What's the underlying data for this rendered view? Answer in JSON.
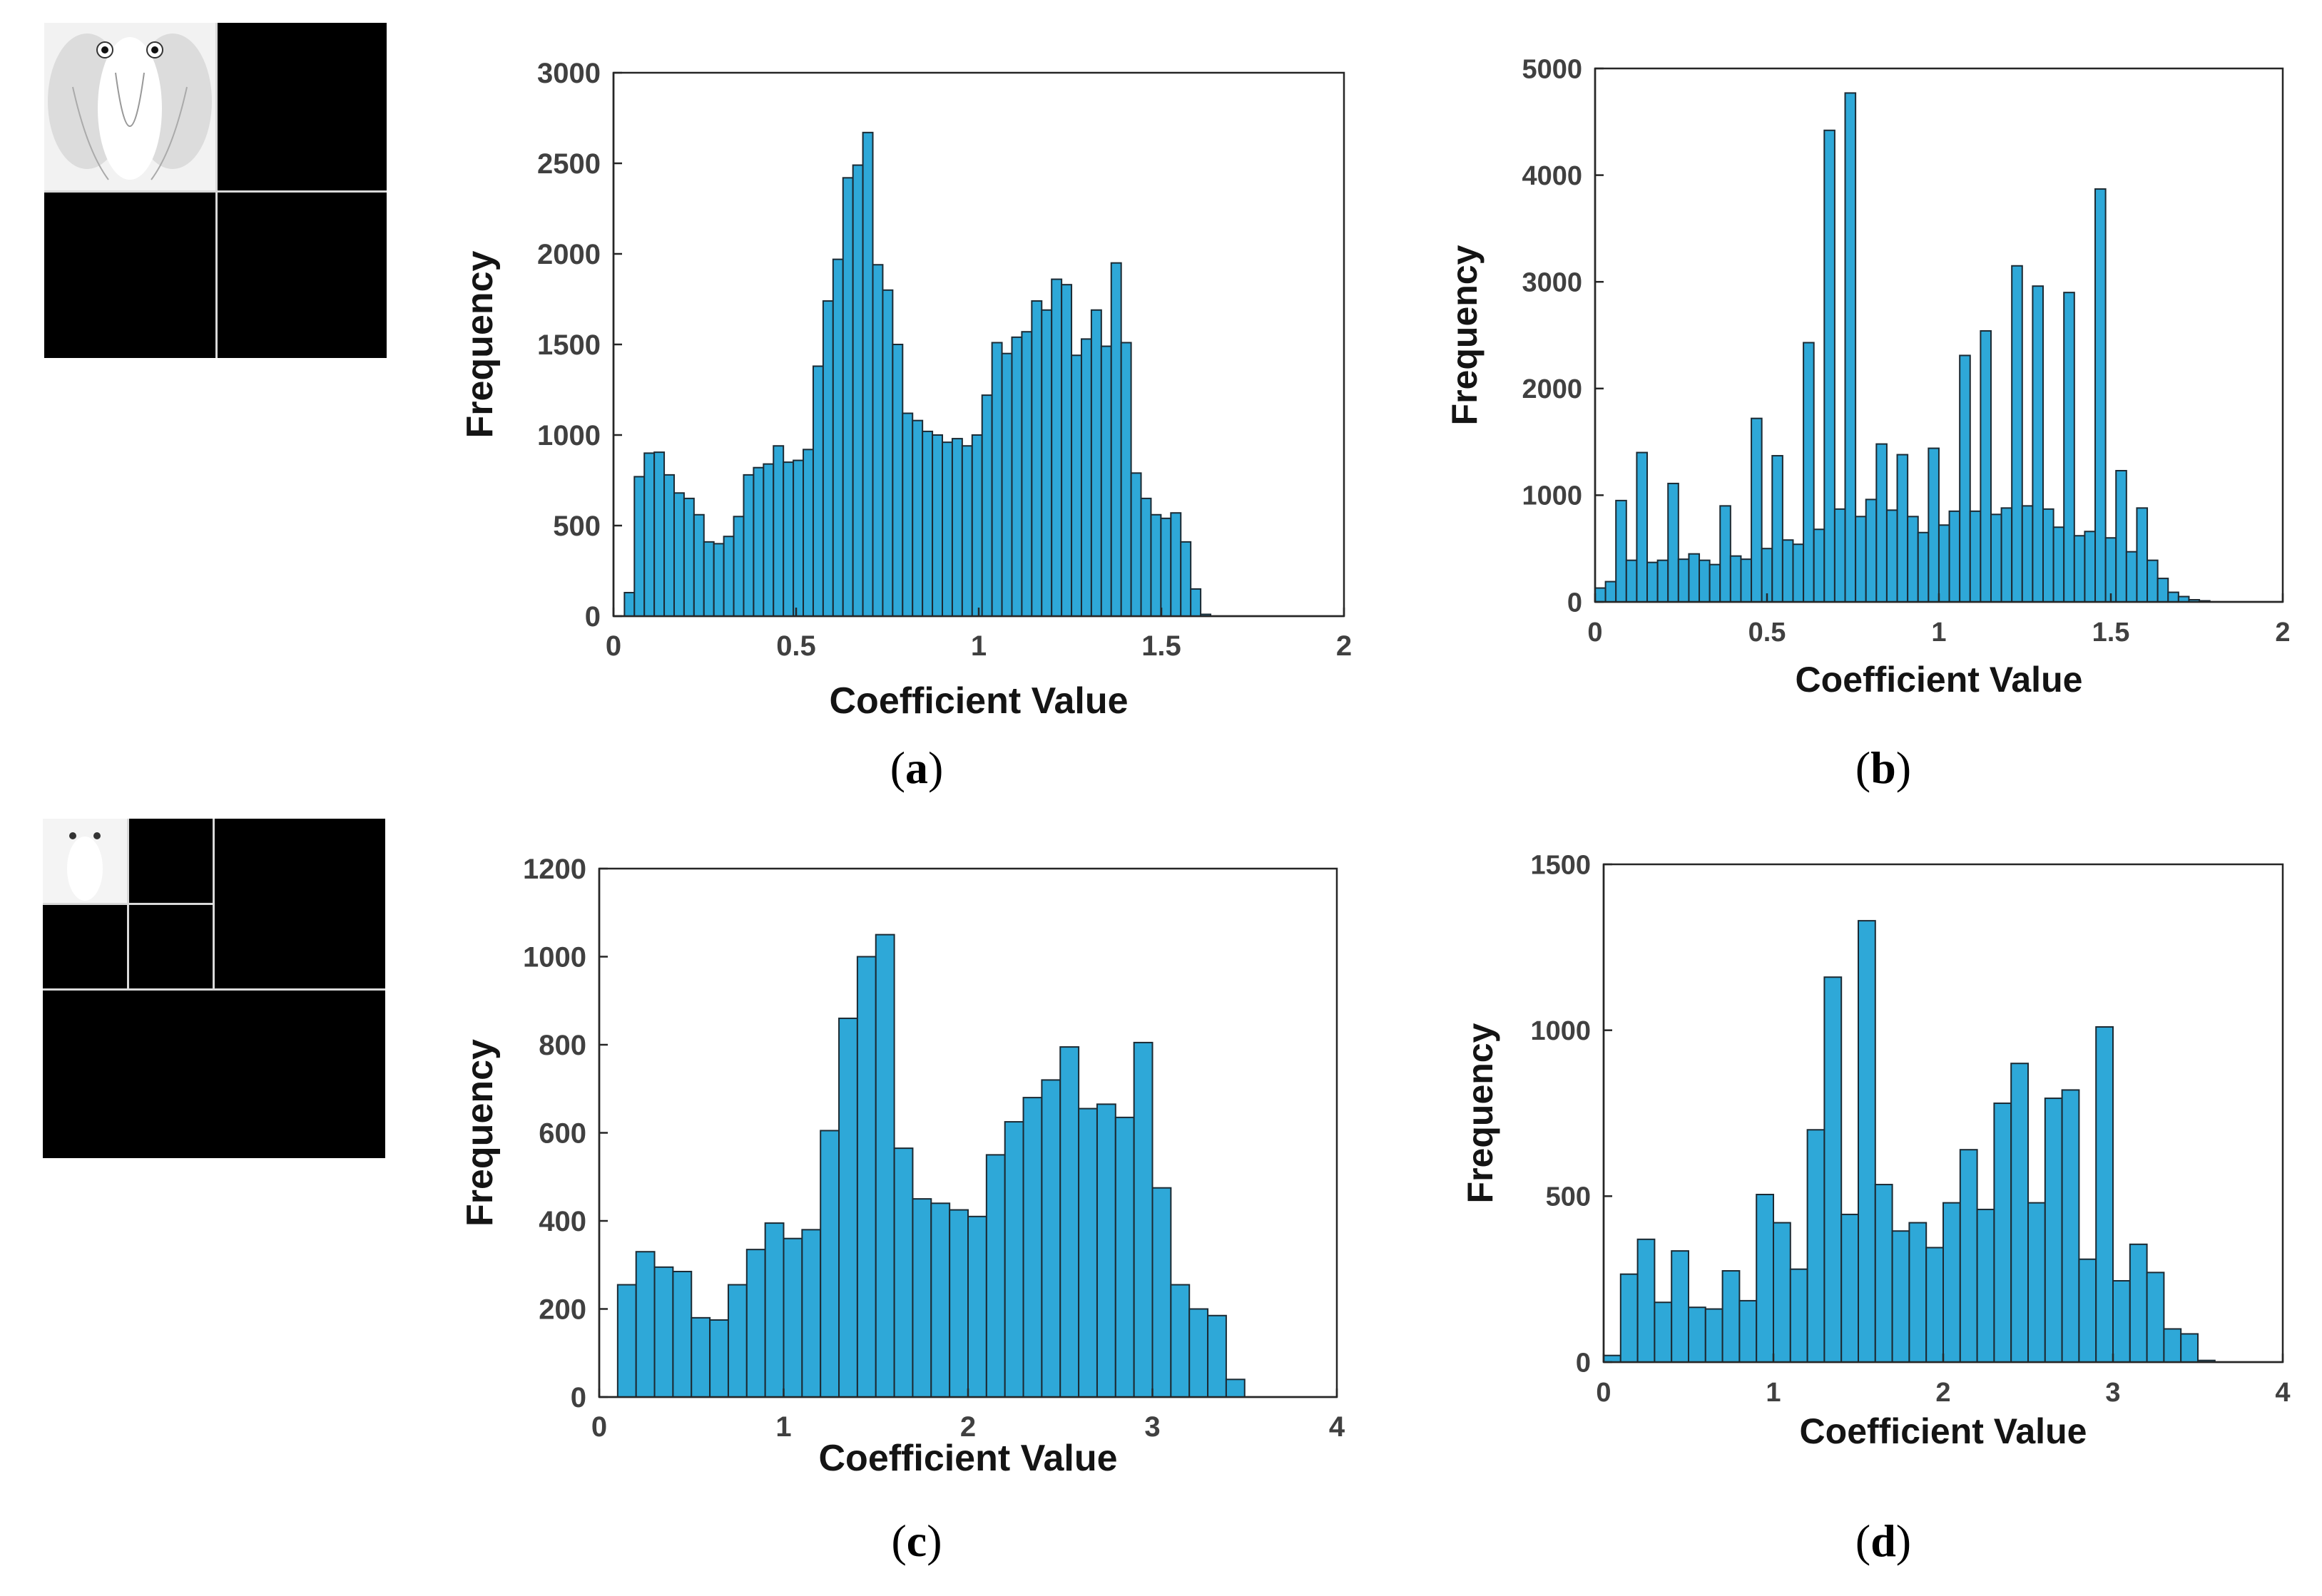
{
  "colors": {
    "bar": "#2ea8d8",
    "bar_edge": "#1c2a33",
    "axis": "#262626",
    "tick_text": "#404040",
    "label_text": "#141414"
  },
  "thumbnails": [
    {
      "name": "thumb-dwt-level1",
      "levels": 1
    },
    {
      "name": "thumb-dwt-level2",
      "levels": 2
    }
  ],
  "chart_data": [
    {
      "type": "bar",
      "panel": "(a)",
      "xlabel": "Coefficient Value",
      "ylabel": "Frequency",
      "xlim": [
        0,
        2
      ],
      "ylim": [
        0,
        3000
      ],
      "xticks": [
        0,
        0.5,
        1,
        1.5,
        2
      ],
      "xtick_labels": [
        "0",
        "0.5",
        "1",
        "1.5",
        "2"
      ],
      "yticks": [
        0,
        500,
        1000,
        1500,
        2000,
        2500,
        3000
      ],
      "ytick_labels": [
        "0",
        "500",
        "1000",
        "1500",
        "2000",
        "2500",
        "3000"
      ],
      "bin_start": 0.03,
      "bin_width": 0.0272,
      "values": [
        130,
        770,
        900,
        905,
        780,
        680,
        650,
        560,
        410,
        400,
        440,
        550,
        780,
        820,
        840,
        940,
        850,
        860,
        920,
        1380,
        1740,
        1970,
        2420,
        2490,
        2670,
        1940,
        1800,
        1500,
        1120,
        1080,
        1020,
        1000,
        960,
        980,
        940,
        1000,
        1220,
        1510,
        1450,
        1540,
        1570,
        1740,
        1690,
        1860,
        1830,
        1440,
        1530,
        1690,
        1490,
        1950,
        1510,
        790,
        650,
        560,
        540,
        570,
        410,
        150,
        10
      ]
    },
    {
      "type": "bar",
      "panel": "(b)",
      "xlabel": "Coefficient Value",
      "ylabel": "Frequency",
      "xlim": [
        0,
        2
      ],
      "ylim": [
        0,
        5000
      ],
      "xticks": [
        0,
        0.5,
        1,
        1.5,
        2
      ],
      "xtick_labels": [
        "0",
        "0.5",
        "1",
        "1.5",
        "2"
      ],
      "yticks": [
        0,
        1000,
        2000,
        3000,
        4000,
        5000
      ],
      "ytick_labels": [
        "0",
        "1000",
        "2000",
        "3000",
        "4000",
        "5000"
      ],
      "bin_start": 0.0,
      "bin_width": 0.0303,
      "values": [
        130,
        190,
        950,
        390,
        1400,
        370,
        390,
        1110,
        400,
        450,
        390,
        350,
        900,
        430,
        400,
        1720,
        500,
        1370,
        580,
        540,
        2430,
        680,
        4420,
        870,
        4770,
        800,
        960,
        1480,
        860,
        1380,
        800,
        650,
        1440,
        720,
        850,
        2310,
        850,
        2540,
        820,
        880,
        3150,
        900,
        2960,
        870,
        700,
        2900,
        620,
        660,
        3870,
        600,
        1230,
        470,
        880,
        390,
        220,
        90,
        50,
        20,
        10
      ]
    },
    {
      "type": "bar",
      "panel": "(c)",
      "xlabel": "Coefficient Value",
      "ylabel": "Frequency",
      "xlim": [
        0,
        4
      ],
      "ylim": [
        0,
        1200
      ],
      "xticks": [
        0,
        1,
        2,
        3,
        4
      ],
      "xtick_labels": [
        "0",
        "1",
        "2",
        "3",
        "4"
      ],
      "yticks": [
        0,
        200,
        400,
        600,
        800,
        1000,
        1200
      ],
      "ytick_labels": [
        "0",
        "200",
        "400",
        "600",
        "800",
        "1000",
        "1200"
      ],
      "bin_start": 0.1,
      "bin_width": 0.1,
      "values": [
        255,
        330,
        295,
        285,
        180,
        175,
        255,
        335,
        395,
        360,
        380,
        605,
        860,
        1000,
        1050,
        565,
        450,
        440,
        425,
        410,
        550,
        625,
        680,
        720,
        795,
        655,
        665,
        635,
        805,
        475,
        255,
        200,
        185,
        40
      ]
    },
    {
      "type": "bar",
      "panel": "(d)",
      "xlabel": "Coefficient Value",
      "ylabel": "Frequency",
      "xlim": [
        0,
        4
      ],
      "ylim": [
        0,
        1500
      ],
      "xticks": [
        0,
        1,
        2,
        3,
        4
      ],
      "xtick_labels": [
        "0",
        "1",
        "2",
        "3",
        "4"
      ],
      "yticks": [
        0,
        500,
        1000,
        1500
      ],
      "ytick_labels": [
        "0",
        "500",
        "1000",
        "1500"
      ],
      "bin_start": 0.0,
      "bin_width": 0.1,
      "values": [
        20,
        265,
        370,
        180,
        335,
        165,
        160,
        275,
        185,
        505,
        420,
        280,
        700,
        1160,
        445,
        1330,
        535,
        395,
        420,
        345,
        480,
        640,
        460,
        780,
        900,
        480,
        795,
        820,
        310,
        1010,
        245,
        355,
        270,
        100,
        85,
        5
      ]
    }
  ]
}
